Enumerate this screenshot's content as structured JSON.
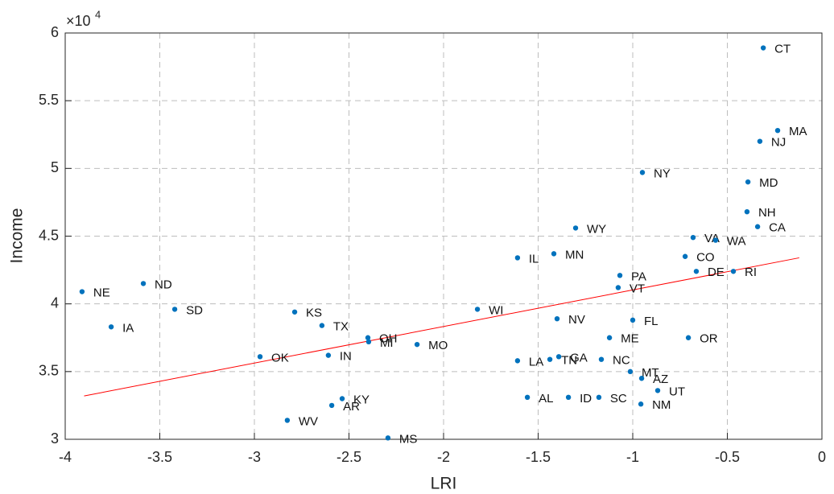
{
  "chart_data": {
    "type": "scatter",
    "xlabel": "LRI",
    "ylabel": "Income",
    "y_multiplier": "×10",
    "y_multiplier_exponent": "4",
    "xlim": [
      -4,
      0
    ],
    "ylim": [
      30000,
      60000
    ],
    "xticks": [
      -4,
      -3.5,
      -3,
      -2.5,
      -2,
      -1.5,
      -1,
      -0.5,
      0
    ],
    "yticks": [
      {
        "value": 30000,
        "label": "3"
      },
      {
        "value": 35000,
        "label": "3.5"
      },
      {
        "value": 40000,
        "label": "4"
      },
      {
        "value": 45000,
        "label": "4.5"
      },
      {
        "value": 50000,
        "label": "5"
      },
      {
        "value": 55000,
        "label": "5.5"
      },
      {
        "value": 60000,
        "label": "6"
      }
    ],
    "grid": true,
    "series": [
      {
        "color": "#0072bd",
        "labels": [
          "CT",
          "MA",
          "NJ",
          "NY",
          "MD",
          "NH",
          "CA",
          "WY",
          "VA",
          "WA",
          "IL",
          "MN",
          "CO",
          "PA",
          "DE",
          "RI",
          "VT",
          "NE",
          "ND",
          "SD",
          "KS",
          "WI",
          "IA",
          "TX",
          "NV",
          "FL",
          "OR",
          "ME",
          "OH",
          "MI",
          "MO",
          "OK",
          "IN",
          "GA",
          "TN",
          "LA",
          "NC",
          "MT",
          "AZ",
          "UT",
          "KY",
          "AL",
          "ID",
          "SC",
          "AR",
          "NM",
          "WV",
          "MS"
        ],
        "x": [
          -0.31,
          -0.234,
          -0.328,
          -0.949,
          -0.391,
          -0.396,
          -0.34,
          -1.302,
          -0.681,
          -0.562,
          -1.609,
          -1.417,
          -0.723,
          -1.068,
          -0.664,
          -0.468,
          -1.077,
          -3.911,
          -3.587,
          -3.421,
          -2.787,
          -1.821,
          -3.757,
          -2.643,
          -1.4,
          -1.0,
          -0.706,
          -1.123,
          -2.4,
          -2.396,
          -2.14,
          -2.97,
          -2.609,
          -1.391,
          -1.438,
          -1.609,
          -1.166,
          -1.013,
          -0.953,
          -0.868,
          -2.536,
          -1.557,
          -1.34,
          -1.179,
          -2.591,
          -0.957,
          -2.826,
          -2.294
        ],
        "y": [
          58900,
          52800,
          52000,
          49700,
          49000,
          46800,
          45700,
          45600,
          44900,
          44700,
          43400,
          43700,
          43500,
          42100,
          42400,
          42400,
          41200,
          40900,
          41500,
          39600,
          39400,
          39600,
          38300,
          38400,
          38900,
          38800,
          37500,
          37500,
          37500,
          37200,
          37000,
          36100,
          36200,
          36100,
          35900,
          35800,
          35900,
          35000,
          34500,
          33600,
          33000,
          33100,
          33100,
          33100,
          32500,
          32600,
          31400,
          30100
        ]
      }
    ],
    "fit_line": {
      "color": "#ff0000",
      "x": [
        -3.9,
        -0.12
      ],
      "y": [
        33200,
        43400
      ]
    }
  }
}
